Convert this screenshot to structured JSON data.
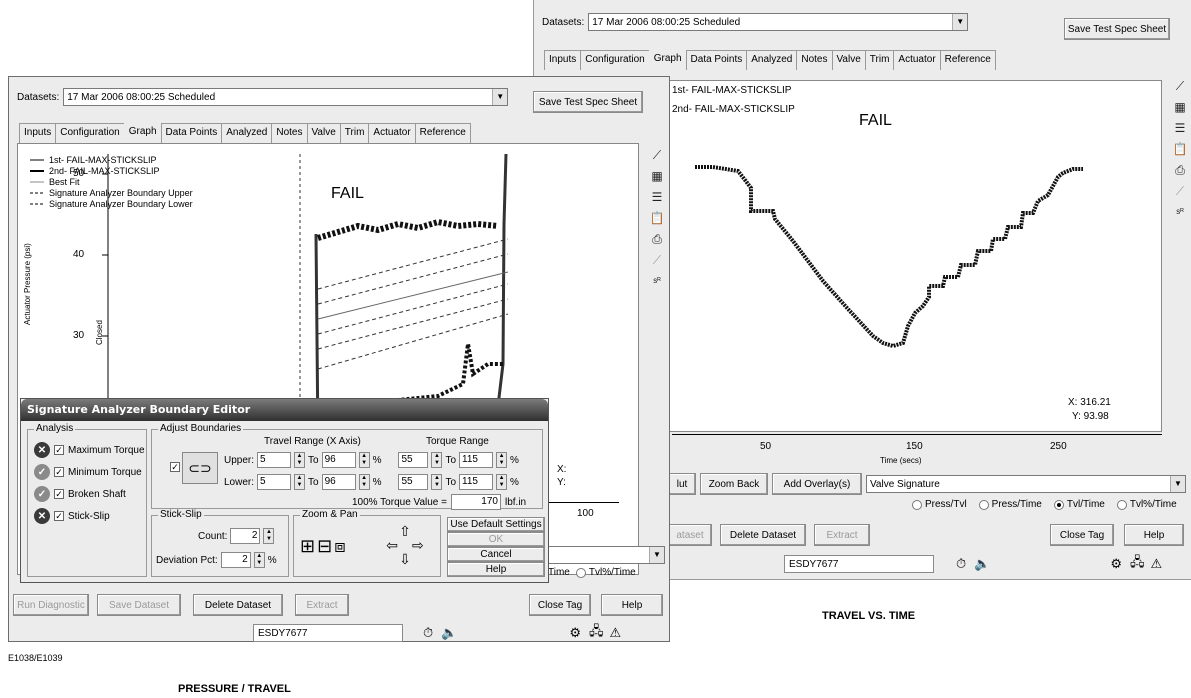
{
  "datasets_label": "Datasets:",
  "dataset_value": "17 Mar 2006 08:00:25   Scheduled",
  "save_spec_button": "Save Test Spec Sheet",
  "tabs": [
    "Inputs",
    "Configuration",
    "Graph",
    "Data Points",
    "Analyzed",
    "Notes",
    "Valve",
    "Trim",
    "Actuator",
    "Reference"
  ],
  "active_tab": "Graph",
  "back_window": {
    "legend": [
      "1st- FAIL-MAX-STICKSLIP",
      "2nd- FAIL-MAX-STICKSLIP"
    ],
    "status_text": "FAIL",
    "readout_x": "X: 316.21",
    "readout_y": "Y: 93.98",
    "x_ticks": [
      "50",
      "150",
      "250"
    ],
    "x_label": "Time (secs)",
    "buttons": [
      "lut",
      "Zoom Back",
      "Add Overlay(s)"
    ],
    "overlay_select": "Valve Signature",
    "radios": [
      "Press/Tvl",
      "Press/Time",
      "Tvl/Time",
      "Tvl%/Time"
    ],
    "selected_radio": "Tvl/Time",
    "action_buttons": [
      "ataset",
      "Delete Dataset",
      "Extract",
      "Close Tag",
      "Help"
    ],
    "tag": "ESDY7677"
  },
  "front_window": {
    "legend": [
      "1st- FAIL-MAX-STICKSLIP",
      "2nd- FAIL-MAX-STICKSLIP",
      "Best Fit",
      "Signature Analyzer Boundary Upper",
      "Signature Analyzer Boundary Lower"
    ],
    "status_text": "FAIL",
    "y_label": "Actuator Pressure (psi)",
    "y_ticks": [
      "50",
      "40",
      "30"
    ],
    "closed_label": "Closed",
    "x_tick": "100",
    "x_readout": "X:",
    "y_readout": "Y:",
    "radio_visible": [
      "l/Time",
      "Tvl%/Time"
    ],
    "buttons": [
      "Run Diagnostic",
      "Save Dataset",
      "Delete Dataset",
      "Extract",
      "Close Tag",
      "Help"
    ],
    "tag": "ESDY7677"
  },
  "dialog": {
    "title": "Signature Analyzer Boundary Editor",
    "analysis_title": "Analysis",
    "analysis": [
      {
        "label": "Maximum Torque",
        "status": "fail"
      },
      {
        "label": "Minimum Torque",
        "status": "pass"
      },
      {
        "label": "Broken Shaft",
        "status": "pass"
      },
      {
        "label": "Stick-Slip",
        "status": "fail"
      }
    ],
    "adjust_title": "Adjust Boundaries",
    "travel_range_label": "Travel Range (X Axis)",
    "torque_range_label": "Torque Range",
    "upper_label": "Upper:",
    "lower_label": "Lower:",
    "to_label": "To",
    "pct": "%",
    "upper": {
      "travel_from": "5",
      "travel_to": "96",
      "torque_from": "55",
      "torque_to": "115"
    },
    "lower": {
      "travel_from": "5",
      "travel_to": "96",
      "torque_from": "55",
      "torque_to": "115"
    },
    "torque_value_label": "100% Torque Value =",
    "torque_value": "170",
    "torque_unit": "lbf.in",
    "stickslip_title": "Stick-Slip",
    "count_label": "Count:",
    "count": "2",
    "deviation_label": "Deviation Pct:",
    "deviation": "2",
    "zoom_title": "Zoom & Pan",
    "use_default": "Use Default Settings",
    "ok": "OK",
    "cancel": "Cancel",
    "help": "Help"
  },
  "caption_code": "E1038/E1039",
  "caption_left": "PRESSURE / TRAVEL",
  "caption_right": "TRAVEL VS. TIME"
}
